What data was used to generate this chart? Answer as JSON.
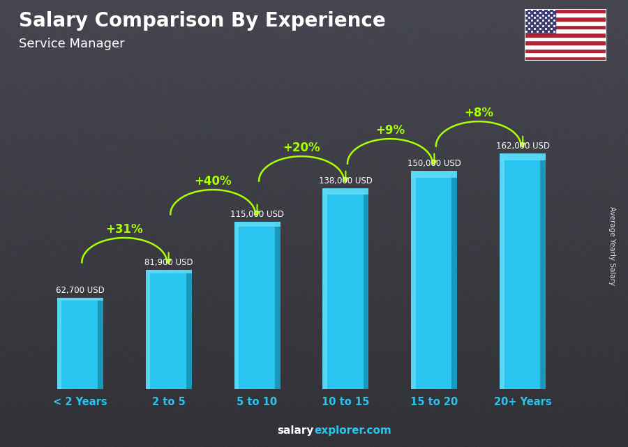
{
  "title": "Salary Comparison By Experience",
  "subtitle": "Service Manager",
  "categories": [
    "< 2 Years",
    "2 to 5",
    "5 to 10",
    "10 to 15",
    "15 to 20",
    "20+ Years"
  ],
  "values": [
    62700,
    81900,
    115000,
    138000,
    150000,
    162000
  ],
  "value_labels": [
    "62,700 USD",
    "81,900 USD",
    "115,000 USD",
    "138,000 USD",
    "150,000 USD",
    "162,000 USD"
  ],
  "pct_changes": [
    null,
    "+31%",
    "+40%",
    "+20%",
    "+9%",
    "+8%"
  ],
  "bar_color_main": "#29C5F0",
  "bar_color_light": "#5DDAF5",
  "bar_color_dark": "#1899BB",
  "pct_color": "#AAFF00",
  "value_label_color": "#FFFFFF",
  "title_color": "#FFFFFF",
  "subtitle_color": "#FFFFFF",
  "xticklabel_color": "#29C5F0",
  "ylabel_text": "Average Yearly Salary",
  "ylabel_color": "#FFFFFF",
  "footer_salary_color": "#FFFFFF",
  "footer_explorer_color": "#29C5F0",
  "bg_color": "#2a2e35",
  "ylim": [
    0,
    200000
  ],
  "figsize": [
    9.0,
    6.41
  ],
  "dpi": 100
}
